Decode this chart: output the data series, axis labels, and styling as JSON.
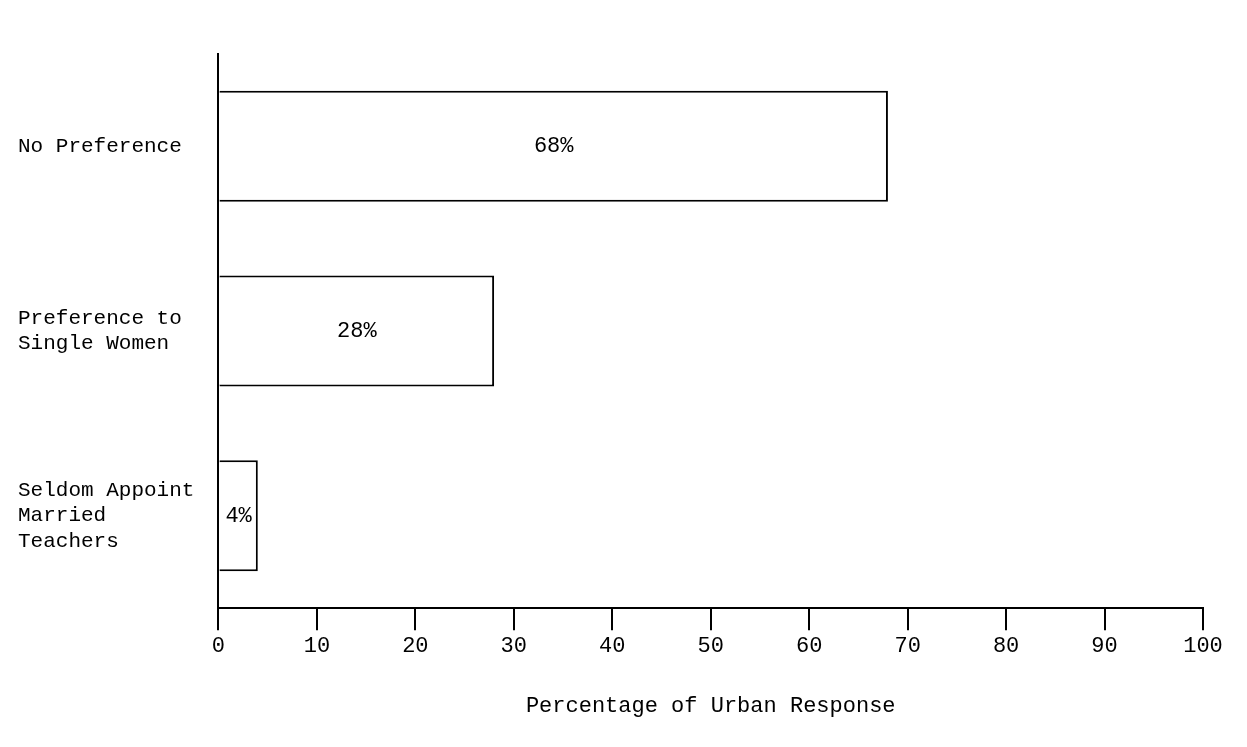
{
  "chart_data": {
    "type": "bar",
    "orientation": "horizontal",
    "xlabel": "Percentage of Urban Response",
    "categories": [
      "No Preference",
      "Preference to Single Women",
      "Seldom Appoint Married Teachers"
    ],
    "values": [
      68,
      28,
      4
    ],
    "value_labels": [
      "68%",
      "28%",
      "4%"
    ],
    "color": "#ffffff",
    "xlim": [
      0,
      100
    ],
    "xticks": [
      0,
      10,
      20,
      30,
      40,
      50,
      60,
      70,
      80,
      90,
      100
    ],
    "grid": false,
    "legend": false
  }
}
